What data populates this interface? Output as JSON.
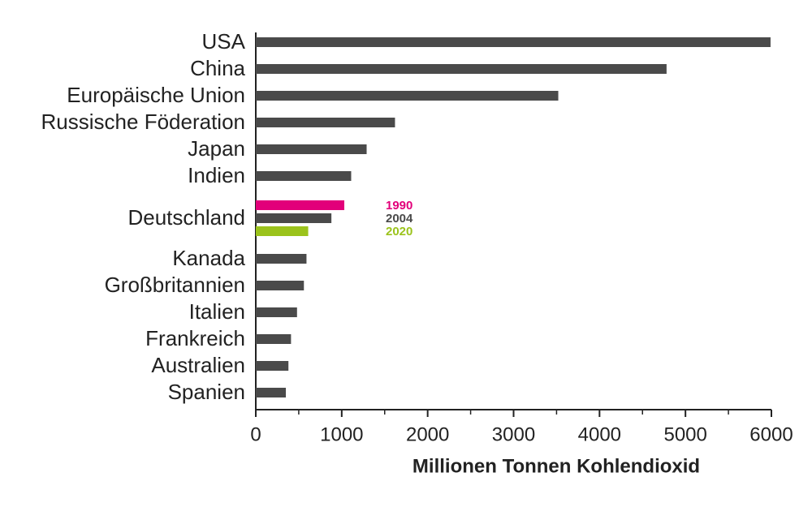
{
  "chart_data": {
    "type": "barh",
    "x_label": "Millionen Tonnen Kohlendioxid",
    "categories": [
      "USA",
      "China",
      "Europäische Union",
      "Russische Föderation",
      "Japan",
      "Indien",
      "Deutschland",
      "Kanada",
      "Großbritannien",
      "Italien",
      "Frankreich",
      "Australien",
      "Spanien"
    ],
    "series": [
      {
        "name": "1990",
        "color": "#e2007a",
        "values": [
          null,
          null,
          null,
          null,
          null,
          null,
          1030,
          null,
          null,
          null,
          null,
          null,
          null
        ]
      },
      {
        "name": "2004",
        "color": "#4a4a4a",
        "values": [
          5990,
          4780,
          3520,
          1620,
          1290,
          1110,
          880,
          590,
          560,
          480,
          410,
          380,
          350
        ]
      },
      {
        "name": "2020",
        "color": "#9bc31c",
        "values": [
          null,
          null,
          null,
          null,
          null,
          null,
          610,
          null,
          null,
          null,
          null,
          null,
          null
        ]
      }
    ],
    "xlim": [
      0,
      6000
    ],
    "xticks": [
      0,
      1000,
      2000,
      3000,
      4000,
      5000,
      6000
    ],
    "minor_xticks": [
      500,
      1500,
      2500,
      3500,
      4500,
      5500
    ]
  }
}
